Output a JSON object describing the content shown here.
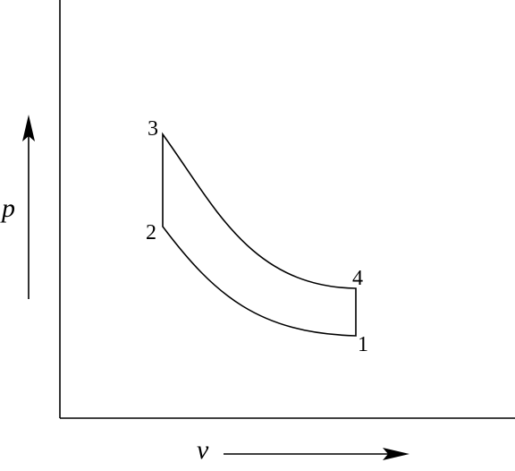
{
  "axes": {
    "y_label": "p",
    "x_label": "v"
  },
  "points": [
    {
      "label": "1"
    },
    {
      "label": "2"
    },
    {
      "label": "3"
    },
    {
      "label": "4"
    }
  ]
}
